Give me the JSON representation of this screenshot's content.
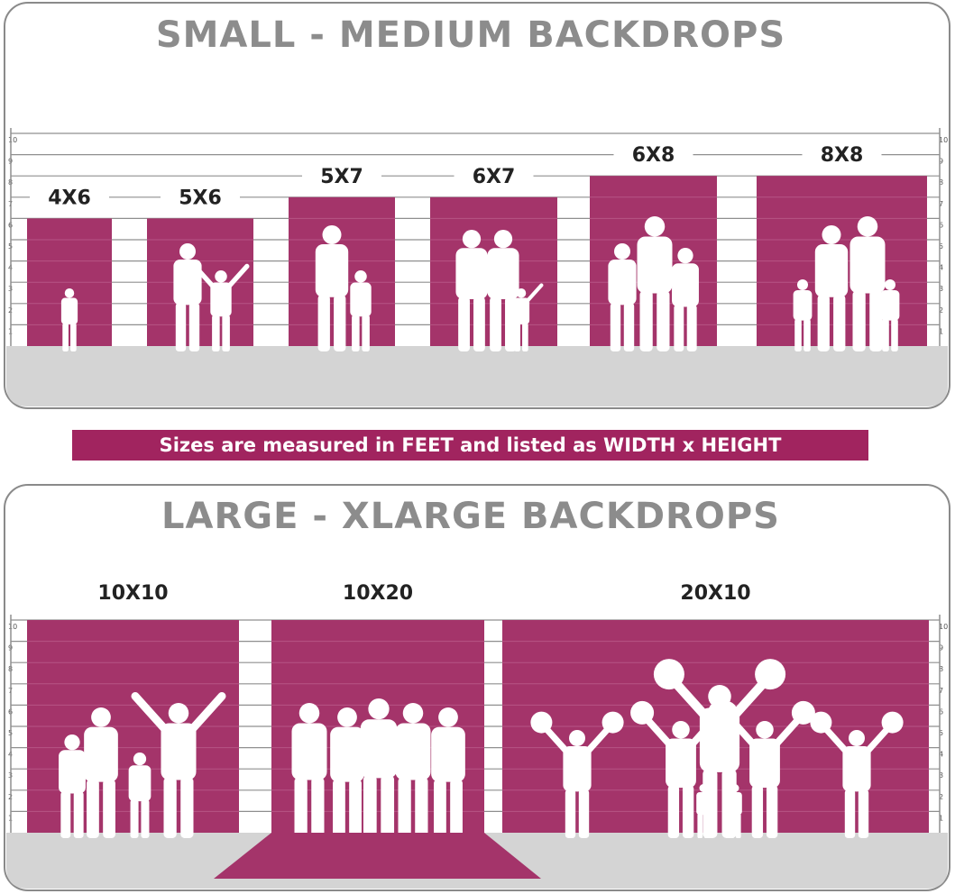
{
  "colors": {
    "backdrop": "#a4346a",
    "floor": "#d4d4d4",
    "title": "#8c8c8c",
    "banner": "#a1245f",
    "silhouette": "#ffffff"
  },
  "scale_ticks": [
    "1",
    "2",
    "3",
    "4",
    "5",
    "6",
    "7",
    "8",
    "9",
    "10"
  ],
  "top_panel": {
    "title": "SMALL - MEDIUM BACKDROPS",
    "backdrops": [
      {
        "label": "4X6",
        "width_ft": 4,
        "height_ft": 6
      },
      {
        "label": "5X6",
        "width_ft": 5,
        "height_ft": 6
      },
      {
        "label": "5X7",
        "width_ft": 5,
        "height_ft": 7
      },
      {
        "label": "6X7",
        "width_ft": 6,
        "height_ft": 7
      },
      {
        "label": "6X8",
        "width_ft": 6,
        "height_ft": 8
      },
      {
        "label": "8X8",
        "width_ft": 8,
        "height_ft": 8
      }
    ]
  },
  "banner": "Sizes are measured in FEET and listed as WIDTH x HEIGHT",
  "bottom_panel": {
    "title": "LARGE - XLARGE BACKDROPS",
    "backdrops": [
      {
        "label": "10X10",
        "width_ft": 10,
        "height_ft": 10
      },
      {
        "label": "10X20",
        "width_ft": 10,
        "height_ft": 20
      },
      {
        "label": "20X10",
        "width_ft": 20,
        "height_ft": 10
      }
    ]
  }
}
